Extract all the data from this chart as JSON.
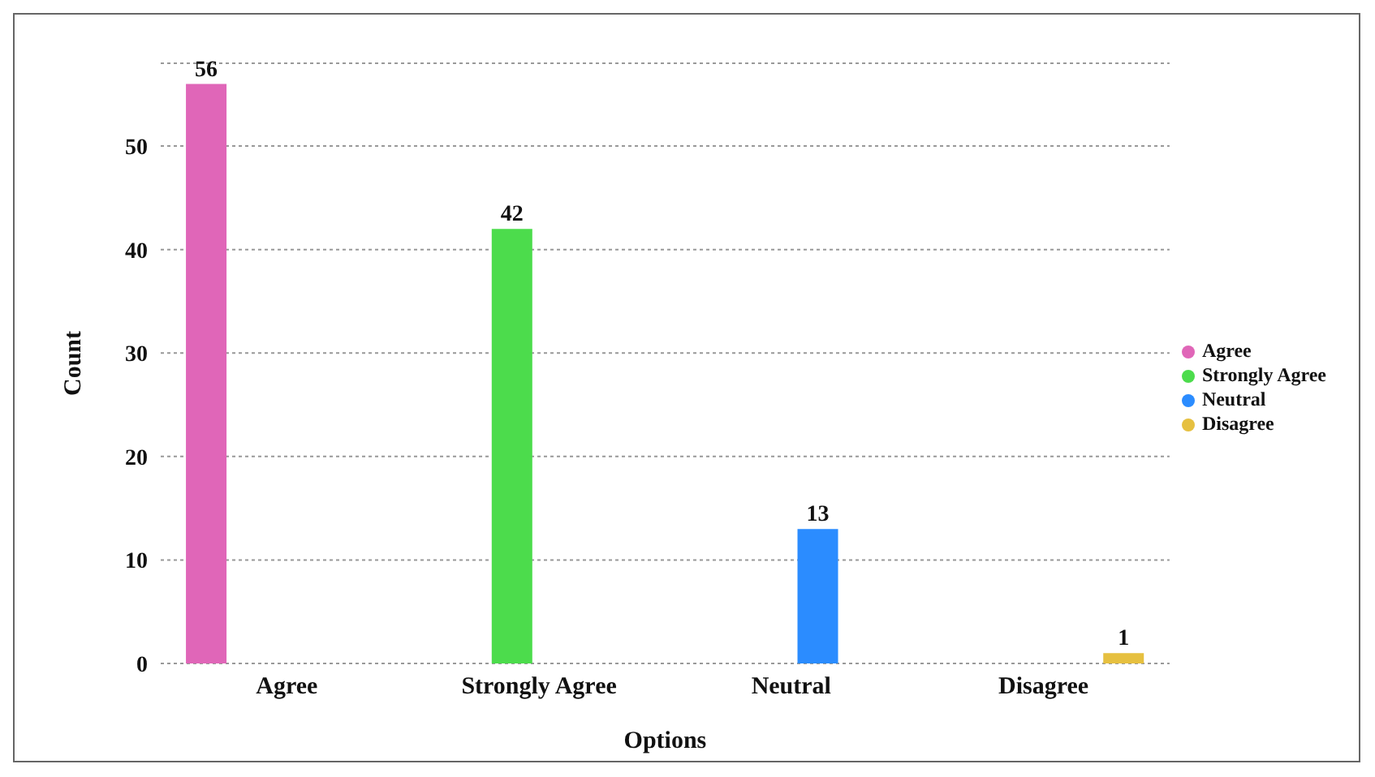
{
  "chart_data": {
    "type": "bar",
    "xlabel": "Options",
    "ylabel": "Count",
    "categories": [
      "Agree",
      "Strongly Agree",
      "Neutral",
      "Disagree"
    ],
    "series": [
      {
        "name": "Agree",
        "color": "#e066b8",
        "values": [
          56,
          null,
          null,
          null
        ]
      },
      {
        "name": "Strongly Agree",
        "color": "#4cdc4c",
        "values": [
          null,
          42,
          null,
          null
        ]
      },
      {
        "name": "Neutral",
        "color": "#2b8cff",
        "values": [
          null,
          null,
          13,
          null
        ]
      },
      {
        "name": "Disagree",
        "color": "#e6c040",
        "values": [
          null,
          null,
          null,
          1
        ]
      }
    ],
    "ylim": [
      0,
      58
    ],
    "yticks": [
      0,
      10,
      20,
      30,
      40,
      50
    ],
    "grid": "y",
    "legend": "right",
    "data_labels": true
  }
}
